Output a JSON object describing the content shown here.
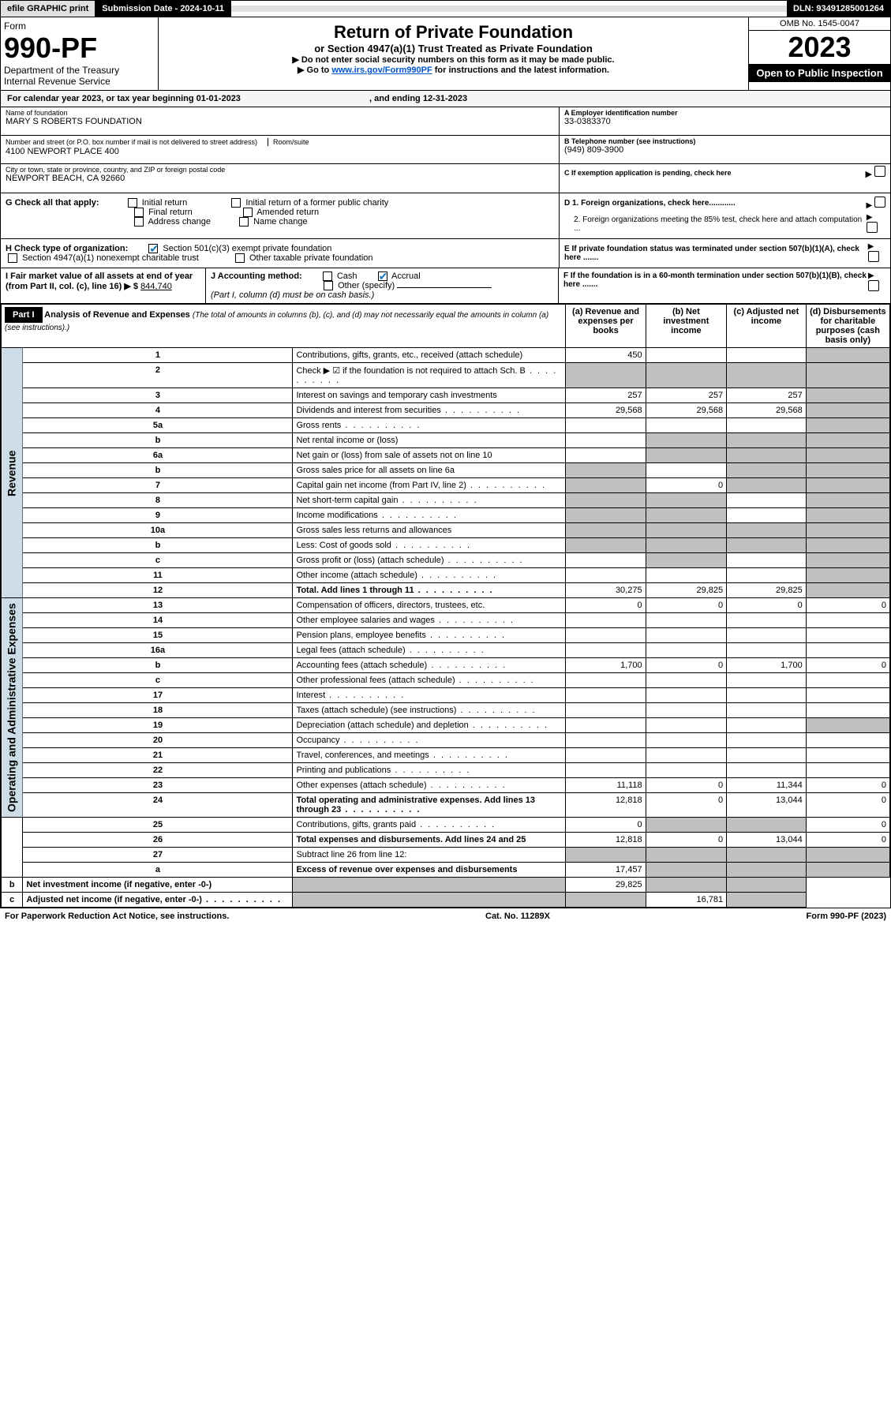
{
  "topbar": {
    "efile": "efile GRAPHIC print",
    "subdate_label": "Submission Date - 2024-10-11",
    "dln": "DLN: 93491285001264"
  },
  "header": {
    "form_label": "Form",
    "form_no": "990-PF",
    "dept": "Department of the Treasury",
    "irs": "Internal Revenue Service",
    "title": "Return of Private Foundation",
    "subtitle": "or Section 4947(a)(1) Trust Treated as Private Foundation",
    "note1": "▶ Do not enter social security numbers on this form as it may be made public.",
    "note2_pre": "▶ Go to ",
    "note2_link": "www.irs.gov/Form990PF",
    "note2_post": " for instructions and the latest information.",
    "omb": "OMB No. 1545-0047",
    "year": "2023",
    "inspect": "Open to Public Inspection"
  },
  "calendar": {
    "text_pre": "For calendar year 2023, or tax year beginning ",
    "begin": "01-01-2023",
    "mid": " , and ending ",
    "end": "12-31-2023"
  },
  "id": {
    "name_lbl": "Name of foundation",
    "name": "MARY S ROBERTS FOUNDATION",
    "addr_lbl": "Number and street (or P.O. box number if mail is not delivered to street address)",
    "addr": "4100 NEWPORT PLACE 400",
    "room_lbl": "Room/suite",
    "city_lbl": "City or town, state or province, country, and ZIP or foreign postal code",
    "city": "NEWPORT BEACH, CA  92660",
    "A_lbl": "A Employer identification number",
    "A_val": "33-0383370",
    "B_lbl": "B Telephone number (see instructions)",
    "B_val": "(949) 809-3900",
    "C_lbl": "C If exemption application is pending, check here",
    "D1_lbl": "D 1. Foreign organizations, check here............",
    "D2_lbl": "2. Foreign organizations meeting the 85% test, check here and attach computation ...",
    "E_lbl": "E If private foundation status was terminated under section 507(b)(1)(A), check here .......",
    "F_lbl": "F If the foundation is in a 60-month termination under section 507(b)(1)(B), check here ......."
  },
  "G": {
    "label": "G Check all that apply:",
    "opts": [
      "Initial return",
      "Final return",
      "Address change",
      "Initial return of a former public charity",
      "Amended return",
      "Name change"
    ]
  },
  "H": {
    "label": "H Check type of organization:",
    "opts": [
      "Section 501(c)(3) exempt private foundation",
      "Section 4947(a)(1) nonexempt charitable trust",
      "Other taxable private foundation"
    ],
    "checked": 0
  },
  "I": {
    "label": "I Fair market value of all assets at end of year (from Part II, col. (c), line 16) ▶ $",
    "val": "844,740"
  },
  "J": {
    "label": "J Accounting method:",
    "opts": [
      "Cash",
      "Accrual",
      "Other (specify)"
    ],
    "checked": 1,
    "note": "(Part I, column (d) must be on cash basis.)"
  },
  "part1": {
    "header": "Part I",
    "title": "Analysis of Revenue and Expenses",
    "subtitle": "(The total of amounts in columns (b), (c), and (d) may not necessarily equal the amounts in column (a) (see instructions).)",
    "cols": [
      "(a) Revenue and expenses per books",
      "(b) Net investment income",
      "(c) Adjusted net income",
      "(d) Disbursements for charitable purposes (cash basis only)"
    ]
  },
  "side_labels": {
    "rev": "Revenue",
    "exp": "Operating and Administrative Expenses"
  },
  "rows": [
    {
      "ln": "1",
      "desc": "Contributions, gifts, grants, etc., received (attach schedule)",
      "a": "450",
      "b": "",
      "c": "",
      "d": "grey"
    },
    {
      "ln": "2",
      "desc": "Check ▶ ☑ if the foundation is not required to attach Sch. B",
      "a": "grey",
      "b": "grey",
      "c": "grey",
      "d": "grey",
      "dots": true
    },
    {
      "ln": "3",
      "desc": "Interest on savings and temporary cash investments",
      "a": "257",
      "b": "257",
      "c": "257",
      "d": "grey"
    },
    {
      "ln": "4",
      "desc": "Dividends and interest from securities",
      "a": "29,568",
      "b": "29,568",
      "c": "29,568",
      "d": "grey",
      "dots": true
    },
    {
      "ln": "5a",
      "desc": "Gross rents",
      "a": "",
      "b": "",
      "c": "",
      "d": "grey",
      "dots": true
    },
    {
      "ln": "b",
      "desc": "Net rental income or (loss)",
      "a": "",
      "b": "grey",
      "c": "grey",
      "d": "grey"
    },
    {
      "ln": "6a",
      "desc": "Net gain or (loss) from sale of assets not on line 10",
      "a": "",
      "b": "grey",
      "c": "grey",
      "d": "grey"
    },
    {
      "ln": "b",
      "desc": "Gross sales price for all assets on line 6a",
      "a": "grey",
      "b": "",
      "c": "grey",
      "d": "grey"
    },
    {
      "ln": "7",
      "desc": "Capital gain net income (from Part IV, line 2)",
      "a": "grey",
      "b": "0",
      "c": "grey",
      "d": "grey",
      "dots": true
    },
    {
      "ln": "8",
      "desc": "Net short-term capital gain",
      "a": "grey",
      "b": "grey",
      "c": "",
      "d": "grey",
      "dots": true
    },
    {
      "ln": "9",
      "desc": "Income modifications",
      "a": "grey",
      "b": "grey",
      "c": "",
      "d": "grey",
      "dots": true
    },
    {
      "ln": "10a",
      "desc": "Gross sales less returns and allowances",
      "a": "grey",
      "b": "grey",
      "c": "grey",
      "d": "grey"
    },
    {
      "ln": "b",
      "desc": "Less: Cost of goods sold",
      "a": "grey",
      "b": "grey",
      "c": "grey",
      "d": "grey",
      "dots": true
    },
    {
      "ln": "c",
      "desc": "Gross profit or (loss) (attach schedule)",
      "a": "",
      "b": "grey",
      "c": "",
      "d": "grey",
      "dots": true
    },
    {
      "ln": "11",
      "desc": "Other income (attach schedule)",
      "a": "",
      "b": "",
      "c": "",
      "d": "grey",
      "dots": true
    },
    {
      "ln": "12",
      "desc": "Total. Add lines 1 through 11",
      "a": "30,275",
      "b": "29,825",
      "c": "29,825",
      "d": "grey",
      "bold": true,
      "dots": true
    },
    {
      "ln": "13",
      "desc": "Compensation of officers, directors, trustees, etc.",
      "a": "0",
      "b": "0",
      "c": "0",
      "d": "0"
    },
    {
      "ln": "14",
      "desc": "Other employee salaries and wages",
      "a": "",
      "b": "",
      "c": "",
      "d": "",
      "dots": true
    },
    {
      "ln": "15",
      "desc": "Pension plans, employee benefits",
      "a": "",
      "b": "",
      "c": "",
      "d": "",
      "dots": true
    },
    {
      "ln": "16a",
      "desc": "Legal fees (attach schedule)",
      "a": "",
      "b": "",
      "c": "",
      "d": "",
      "dots": true
    },
    {
      "ln": "b",
      "desc": "Accounting fees (attach schedule)",
      "a": "1,700",
      "b": "0",
      "c": "1,700",
      "d": "0",
      "dots": true
    },
    {
      "ln": "c",
      "desc": "Other professional fees (attach schedule)",
      "a": "",
      "b": "",
      "c": "",
      "d": "",
      "dots": true
    },
    {
      "ln": "17",
      "desc": "Interest",
      "a": "",
      "b": "",
      "c": "",
      "d": "",
      "dots": true
    },
    {
      "ln": "18",
      "desc": "Taxes (attach schedule) (see instructions)",
      "a": "",
      "b": "",
      "c": "",
      "d": "",
      "dots": true
    },
    {
      "ln": "19",
      "desc": "Depreciation (attach schedule) and depletion",
      "a": "",
      "b": "",
      "c": "",
      "d": "grey",
      "dots": true
    },
    {
      "ln": "20",
      "desc": "Occupancy",
      "a": "",
      "b": "",
      "c": "",
      "d": "",
      "dots": true
    },
    {
      "ln": "21",
      "desc": "Travel, conferences, and meetings",
      "a": "",
      "b": "",
      "c": "",
      "d": "",
      "dots": true
    },
    {
      "ln": "22",
      "desc": "Printing and publications",
      "a": "",
      "b": "",
      "c": "",
      "d": "",
      "dots": true
    },
    {
      "ln": "23",
      "desc": "Other expenses (attach schedule)",
      "a": "11,118",
      "b": "0",
      "c": "11,344",
      "d": "0",
      "dots": true
    },
    {
      "ln": "24",
      "desc": "Total operating and administrative expenses. Add lines 13 through 23",
      "a": "12,818",
      "b": "0",
      "c": "13,044",
      "d": "0",
      "bold": true,
      "dots": true
    },
    {
      "ln": "25",
      "desc": "Contributions, gifts, grants paid",
      "a": "0",
      "b": "grey",
      "c": "grey",
      "d": "0",
      "dots": true
    },
    {
      "ln": "26",
      "desc": "Total expenses and disbursements. Add lines 24 and 25",
      "a": "12,818",
      "b": "0",
      "c": "13,044",
      "d": "0",
      "bold": true
    },
    {
      "ln": "27",
      "desc": "Subtract line 26 from line 12:",
      "a": "grey",
      "b": "grey",
      "c": "grey",
      "d": "grey"
    },
    {
      "ln": "a",
      "desc": "Excess of revenue over expenses and disbursements",
      "a": "17,457",
      "b": "grey",
      "c": "grey",
      "d": "grey",
      "bold": true
    },
    {
      "ln": "b",
      "desc": "Net investment income (if negative, enter -0-)",
      "a": "grey",
      "b": "29,825",
      "c": "grey",
      "d": "grey",
      "bold": true
    },
    {
      "ln": "c",
      "desc": "Adjusted net income (if negative, enter -0-)",
      "a": "grey",
      "b": "grey",
      "c": "16,781",
      "d": "grey",
      "bold": true,
      "dots": true
    }
  ],
  "footer": {
    "left": "For Paperwork Reduction Act Notice, see instructions.",
    "mid": "Cat. No. 11289X",
    "right": "Form 990-PF (2023)"
  }
}
